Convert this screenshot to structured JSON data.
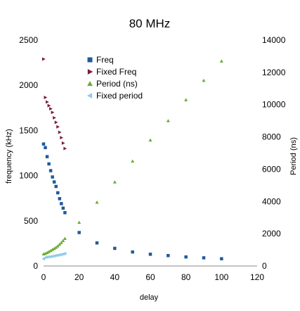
{
  "chart_data": {
    "type": "scatter",
    "title": "80 MHz",
    "xlabel": "delay",
    "ylabel": "frequency (kHz)",
    "y2label": "Period (ns)",
    "xlim": [
      0,
      120
    ],
    "ylim": [
      0,
      2500
    ],
    "y2lim": [
      0,
      14000
    ],
    "x_ticks": [
      0,
      20,
      40,
      60,
      80,
      100,
      120
    ],
    "y_ticks": [
      0,
      500,
      1000,
      1500,
      2000,
      2500
    ],
    "y2_ticks": [
      0,
      2000,
      4000,
      6000,
      8000,
      10000,
      12000,
      14000
    ],
    "grid": false,
    "legend_position": "top-center",
    "series": [
      {
        "name": "Freq",
        "axis": "left",
        "marker": "square",
        "color": "#1f5b99",
        "points": [
          [
            0,
            1350
          ],
          [
            1,
            1310
          ],
          [
            2,
            1210
          ],
          [
            3,
            1130
          ],
          [
            4,
            1055
          ],
          [
            5,
            985
          ],
          [
            6,
            930
          ],
          [
            7,
            880
          ],
          [
            8,
            810
          ],
          [
            9,
            745
          ],
          [
            10,
            690
          ],
          [
            11,
            640
          ],
          [
            12,
            590
          ],
          [
            20,
            370
          ],
          [
            30,
            255
          ],
          [
            40,
            195
          ],
          [
            50,
            155
          ],
          [
            60,
            130
          ],
          [
            70,
            115
          ],
          [
            80,
            100
          ],
          [
            90,
            90
          ],
          [
            100,
            80
          ]
        ]
      },
      {
        "name": "Fixed Freq",
        "axis": "left",
        "marker": "triangle-right",
        "color": "#7b1842",
        "points": [
          [
            0,
            2290
          ],
          [
            1,
            1865
          ],
          [
            2,
            1815
          ],
          [
            3,
            1775
          ],
          [
            4,
            1740
          ],
          [
            5,
            1700
          ],
          [
            6,
            1640
          ],
          [
            7,
            1590
          ],
          [
            8,
            1540
          ],
          [
            9,
            1480
          ],
          [
            10,
            1420
          ],
          [
            11,
            1360
          ],
          [
            12,
            1300
          ]
        ]
      },
      {
        "name": "Period (ns)",
        "axis": "right",
        "marker": "triangle-up",
        "color": "#6aab2e",
        "points": [
          [
            0,
            740
          ],
          [
            1,
            770
          ],
          [
            2,
            830
          ],
          [
            3,
            890
          ],
          [
            4,
            950
          ],
          [
            5,
            1020
          ],
          [
            6,
            1080
          ],
          [
            7,
            1150
          ],
          [
            8,
            1240
          ],
          [
            9,
            1340
          ],
          [
            10,
            1450
          ],
          [
            11,
            1570
          ],
          [
            12,
            1700
          ],
          [
            20,
            2700
          ],
          [
            30,
            3950
          ],
          [
            40,
            5200
          ],
          [
            50,
            6500
          ],
          [
            60,
            7800
          ],
          [
            70,
            9000
          ],
          [
            80,
            10300
          ],
          [
            90,
            11500
          ],
          [
            100,
            12700
          ]
        ]
      },
      {
        "name": "Fixed period",
        "axis": "right",
        "marker": "triangle-left",
        "color": "#8ecae6",
        "points": [
          [
            0,
            440
          ],
          [
            1,
            520
          ],
          [
            2,
            550
          ],
          [
            3,
            565
          ],
          [
            4,
            580
          ],
          [
            5,
            600
          ],
          [
            6,
            620
          ],
          [
            7,
            645
          ],
          [
            8,
            665
          ],
          [
            9,
            690
          ],
          [
            10,
            710
          ],
          [
            11,
            740
          ],
          [
            12,
            770
          ]
        ]
      }
    ]
  }
}
